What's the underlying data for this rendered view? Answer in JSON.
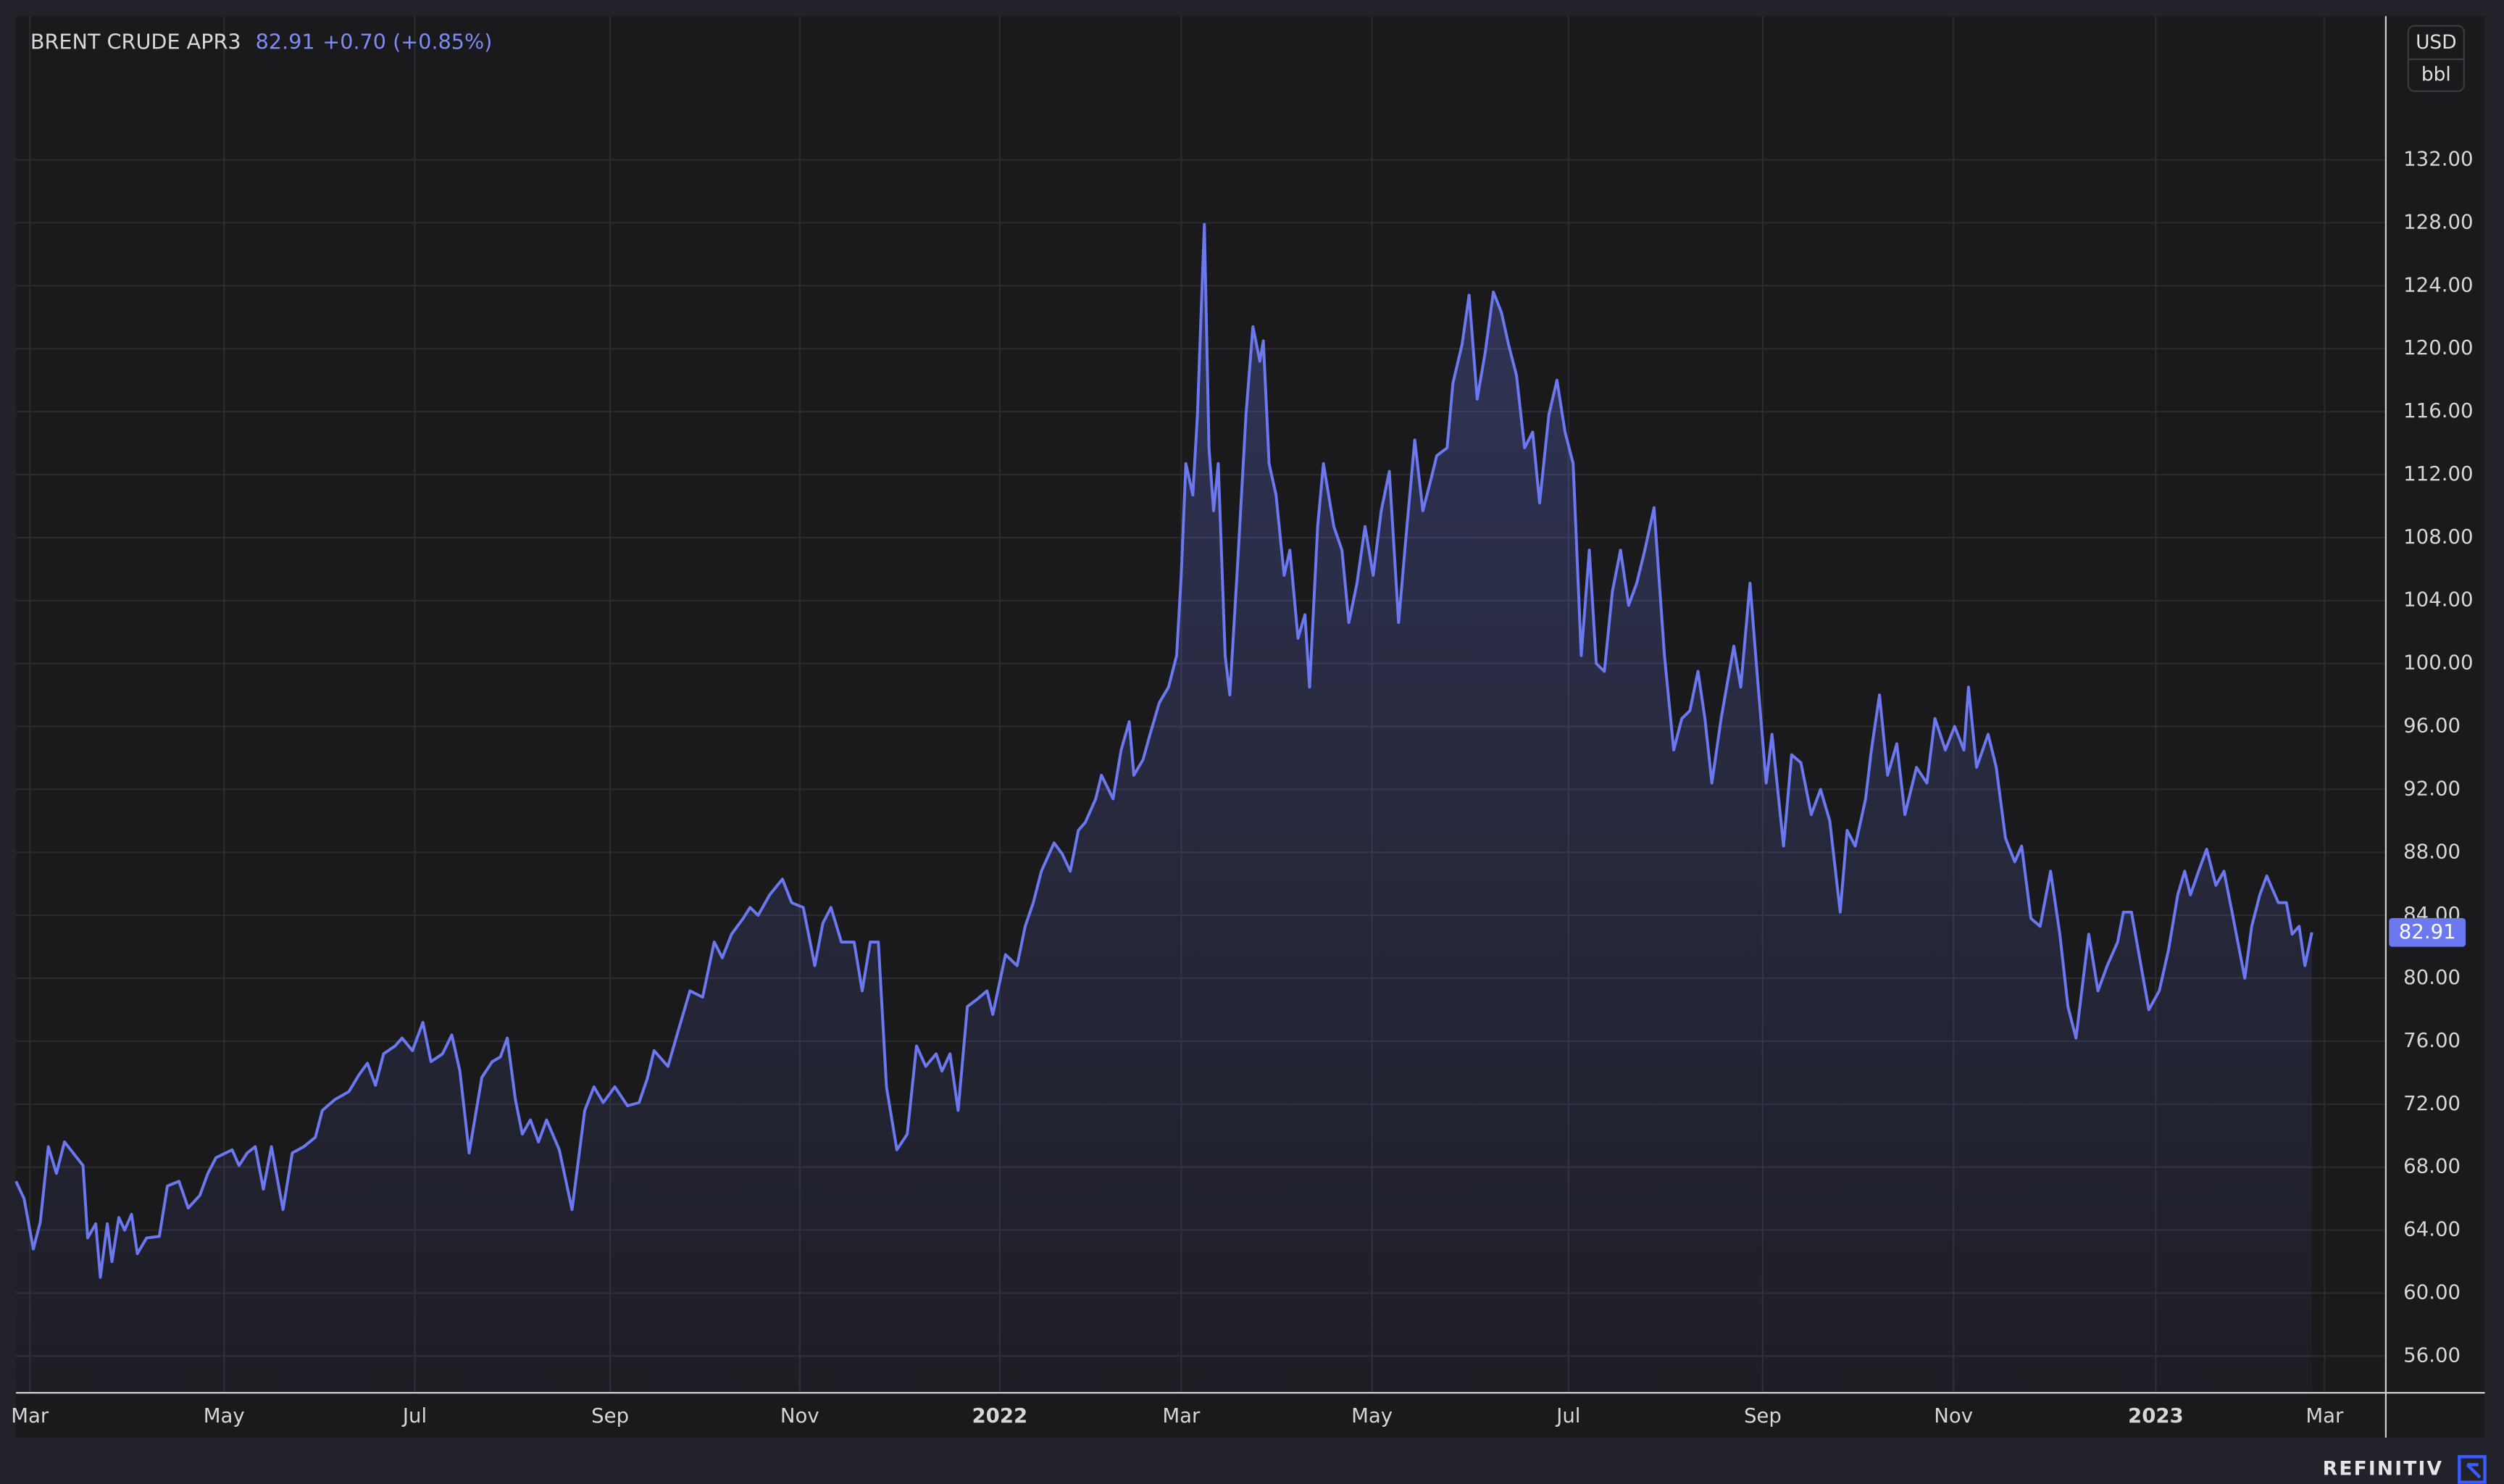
{
  "chart_data": {
    "type": "line",
    "title": "BRENT CRUDE APR3",
    "last_value": 82.91,
    "change": "+0.70 (+0.85%)",
    "unit": "USD",
    "unit_detail": "bbl",
    "brand": "REFINITIV",
    "color": "#6b78f0",
    "grid": true,
    "xlim": [
      2021.149,
      2023.199
    ],
    "ylim": [
      53.66,
      141.13
    ],
    "xticks": [
      {
        "value": 2021.161,
        "label": "Mar"
      },
      {
        "value": 2021.329,
        "label": "May"
      },
      {
        "value": 2021.494,
        "label": "Jul"
      },
      {
        "value": 2021.663,
        "label": "Sep"
      },
      {
        "value": 2021.827,
        "label": "Nov"
      },
      2022,
      {
        "value": 2022.157,
        "label": "Mar"
      },
      {
        "value": 2022.322,
        "label": "May"
      },
      {
        "value": 2022.492,
        "label": "Jul"
      },
      {
        "value": 2022.66,
        "label": "Sep"
      },
      {
        "value": 2022.825,
        "label": "Nov"
      },
      2023,
      {
        "value": 2023.146,
        "label": "Mar"
      }
    ],
    "yticks": [
      {
        "value": 56,
        "label": "56.00"
      },
      {
        "value": 60,
        "label": "60.00"
      },
      {
        "value": 64,
        "label": "64.00"
      },
      {
        "value": 68,
        "label": "68.00"
      },
      {
        "value": 72,
        "label": "72.00"
      },
      {
        "value": 76,
        "label": "76.00"
      },
      {
        "value": 80,
        "label": "80.00"
      },
      {
        "value": 84,
        "label": "84.00"
      },
      {
        "value": 88,
        "label": "88.00"
      },
      {
        "value": 92,
        "label": "92.00"
      },
      {
        "value": 96,
        "label": "96.00"
      },
      {
        "value": 100,
        "label": "100.00"
      },
      {
        "value": 104,
        "label": "104.00"
      },
      {
        "value": 108,
        "label": "108.00"
      },
      {
        "value": 112,
        "label": "112.00"
      },
      {
        "value": 116,
        "label": "116.00"
      },
      {
        "value": 120,
        "label": "120.00"
      },
      {
        "value": 124,
        "label": "124.00"
      },
      {
        "value": 128,
        "label": "128.00"
      },
      {
        "value": 132,
        "label": "132.00"
      }
    ],
    "x": [
      2021.149,
      2021.156,
      2021.164,
      2021.17,
      2021.177,
      2021.184,
      2021.191,
      2021.207,
      2021.211,
      2021.218,
      2021.222,
      2021.228,
      2021.232,
      2021.238,
      2021.243,
      2021.249,
      2021.254,
      2021.262,
      2021.273,
      2021.28,
      2021.29,
      2021.298,
      2021.308,
      2021.315,
      2021.322,
      2021.336,
      2021.342,
      2021.349,
      2021.356,
      2021.363,
      2021.37,
      2021.38,
      2021.388,
      2021.398,
      2021.408,
      2021.414,
      2021.425,
      2021.437,
      2021.446,
      2021.453,
      2021.46,
      2021.467,
      2021.477,
      2021.483,
      2021.492,
      2021.501,
      2021.508,
      2021.518,
      2021.526,
      2021.533,
      2021.541,
      2021.552,
      2021.561,
      2021.568,
      2021.574,
      2021.581,
      2021.587,
      2021.594,
      2021.601,
      2021.608,
      2021.619,
      2021.63,
      2021.641,
      2021.649,
      2021.657,
      2021.667,
      2021.678,
      2021.688,
      2021.695,
      2021.701,
      2021.713,
      2021.722,
      2021.732,
      2021.743,
      2021.753,
      2021.76,
      2021.768,
      2021.778,
      2021.784,
      2021.791,
      2021.801,
      2021.812,
      2021.82,
      2021.83,
      2021.84,
      2021.847,
      2021.854,
      2021.863,
      2021.874,
      2021.881,
      2021.888,
      2021.895,
      2021.902,
      2021.911,
      2021.92,
      2021.928,
      2021.936,
      2021.945,
      2021.95,
      2021.957,
      2021.964,
      2021.972,
      2021.981,
      2021.989,
      2021.994,
      2022.005,
      2022.015,
      2022.022,
      2022.029,
      2022.036,
      2022.047,
      2022.054,
      2022.061,
      2022.068,
      2022.074,
      2022.083,
      2022.088,
      2022.098,
      2022.105,
      2022.112,
      2022.116,
      2022.124,
      2022.13,
      2022.138,
      2022.146,
      2022.153,
      2022.157,
      2022.161,
      2022.167,
      2022.171,
      2022.177,
      2022.181,
      2022.185,
      2022.189,
      2022.195,
      2022.199,
      2022.206,
      2022.213,
      2022.219,
      2022.225,
      2022.228,
      2022.233,
      2022.239,
      2022.246,
      2022.251,
      2022.258,
      2022.264,
      2022.268,
      2022.275,
      2022.28,
      2022.289,
      2022.296,
      2022.302,
      2022.309,
      2022.316,
      2022.323,
      2022.33,
      2022.337,
      2022.345,
      2022.351,
      2022.359,
      2022.366,
      2022.373,
      2022.378,
      2022.387,
      2022.392,
      2022.4,
      2022.406,
      2022.413,
      2022.42,
      2022.427,
      2022.434,
      2022.44,
      2022.447,
      2022.454,
      2022.461,
      2022.467,
      2022.475,
      2022.482,
      2022.489,
      2022.496,
      2022.503,
      2022.51,
      2022.516,
      2022.523,
      2022.53,
      2022.537,
      2022.544,
      2022.551,
      2022.558,
      2022.566,
      2022.575,
      2022.583,
      2022.59,
      2022.597,
      2022.604,
      2022.61,
      2022.616,
      2022.624,
      2022.635,
      2022.641,
      2022.649,
      2022.655,
      2022.663,
      2022.668,
      2022.678,
      2022.685,
      2022.693,
      2022.702,
      2022.71,
      2022.718,
      2022.727,
      2022.733,
      2022.74,
      2022.749,
      2022.754,
      2022.761,
      2022.768,
      2022.776,
      2022.783,
      2022.793,
      2022.802,
      2022.809,
      2022.818,
      2022.826,
      2022.834,
      2022.838,
      2022.845,
      2022.855,
      2022.862,
      2022.87,
      2022.878,
      2022.884,
      2022.892,
      2022.9,
      2022.909,
      2022.917,
      2022.924,
      2022.931,
      2022.942,
      2022.95,
      2022.958,
      2022.967,
      2022.972,
      2022.979,
      2022.986,
      2022.994,
      2023.003,
      2023.011,
      2023.019,
      2023.025,
      2023.03,
      2023.037,
      2023.044,
      2023.052,
      2023.059,
      2023.066,
      2023.077,
      2023.083,
      2023.09,
      2023.096,
      2023.106,
      2023.113,
      2023.118,
      2023.124,
      2023.129,
      2023.135
    ],
    "values": [
      67.1,
      66.0,
      62.8,
      64.5,
      69.3,
      67.6,
      69.6,
      68.1,
      63.5,
      64.4,
      61.0,
      64.4,
      62.0,
      64.8,
      64.0,
      65.0,
      62.5,
      63.5,
      63.6,
      66.8,
      67.1,
      65.4,
      66.2,
      67.6,
      68.6,
      69.1,
      68.1,
      68.9,
      69.3,
      66.6,
      69.3,
      65.3,
      68.9,
      69.3,
      69.9,
      71.6,
      72.3,
      72.8,
      73.9,
      74.6,
      73.2,
      75.2,
      75.7,
      76.2,
      75.4,
      77.2,
      74.7,
      75.2,
      76.4,
      74.1,
      68.9,
      73.7,
      74.7,
      75.0,
      76.2,
      72.3,
      70.1,
      71.0,
      69.6,
      71.0,
      69.1,
      65.3,
      71.6,
      73.1,
      72.1,
      73.1,
      71.9,
      72.1,
      73.6,
      75.4,
      74.4,
      76.7,
      79.2,
      78.8,
      82.3,
      81.3,
      82.8,
      83.8,
      84.5,
      84.0,
      85.3,
      86.3,
      84.8,
      84.5,
      80.8,
      83.5,
      84.5,
      82.3,
      82.3,
      79.2,
      82.3,
      82.3,
      73.1,
      69.1,
      70.1,
      75.7,
      74.4,
      75.2,
      74.1,
      75.2,
      71.6,
      78.2,
      78.7,
      79.2,
      77.7,
      81.5,
      80.8,
      83.3,
      84.8,
      86.8,
      88.6,
      87.9,
      86.8,
      89.4,
      89.9,
      91.4,
      92.9,
      91.4,
      94.5,
      96.3,
      92.9,
      93.9,
      95.5,
      97.5,
      98.5,
      100.5,
      105.6,
      112.7,
      110.7,
      115.8,
      127.9,
      113.7,
      109.7,
      112.7,
      100.5,
      98.0,
      106.6,
      115.8,
      121.4,
      119.2,
      120.5,
      112.7,
      110.7,
      105.6,
      107.2,
      101.6,
      103.1,
      98.5,
      108.7,
      112.7,
      108.7,
      107.2,
      102.6,
      105.1,
      108.7,
      105.6,
      109.7,
      112.2,
      102.6,
      107.7,
      114.2,
      109.7,
      111.7,
      113.2,
      113.7,
      117.8,
      120.3,
      123.4,
      116.8,
      119.8,
      123.6,
      122.3,
      120.3,
      118.3,
      113.7,
      114.7,
      110.2,
      115.8,
      118.0,
      114.7,
      112.7,
      100.5,
      107.2,
      100.0,
      99.5,
      104.6,
      107.2,
      103.7,
      105.1,
      107.2,
      109.9,
      100.5,
      94.5,
      96.5,
      97.0,
      99.5,
      96.5,
      92.4,
      96.5,
      101.1,
      98.5,
      105.1,
      99.5,
      92.4,
      95.5,
      88.4,
      94.2,
      93.7,
      90.4,
      92.0,
      90.0,
      84.2,
      89.4,
      88.4,
      91.4,
      94.5,
      98.0,
      92.9,
      94.9,
      90.4,
      93.4,
      92.4,
      96.5,
      94.5,
      96.0,
      94.5,
      98.5,
      93.4,
      95.5,
      93.4,
      88.9,
      87.4,
      88.4,
      83.8,
      83.3,
      86.8,
      82.8,
      78.2,
      76.2,
      82.8,
      79.2,
      80.8,
      82.3,
      84.2,
      84.2,
      81.3,
      78.0,
      79.2,
      81.8,
      85.3,
      86.8,
      85.3,
      86.8,
      88.2,
      85.9,
      86.8,
      84.2,
      80.0,
      83.3,
      85.3,
      86.5,
      84.8,
      84.8,
      82.8,
      83.3,
      80.8,
      82.91
    ]
  }
}
